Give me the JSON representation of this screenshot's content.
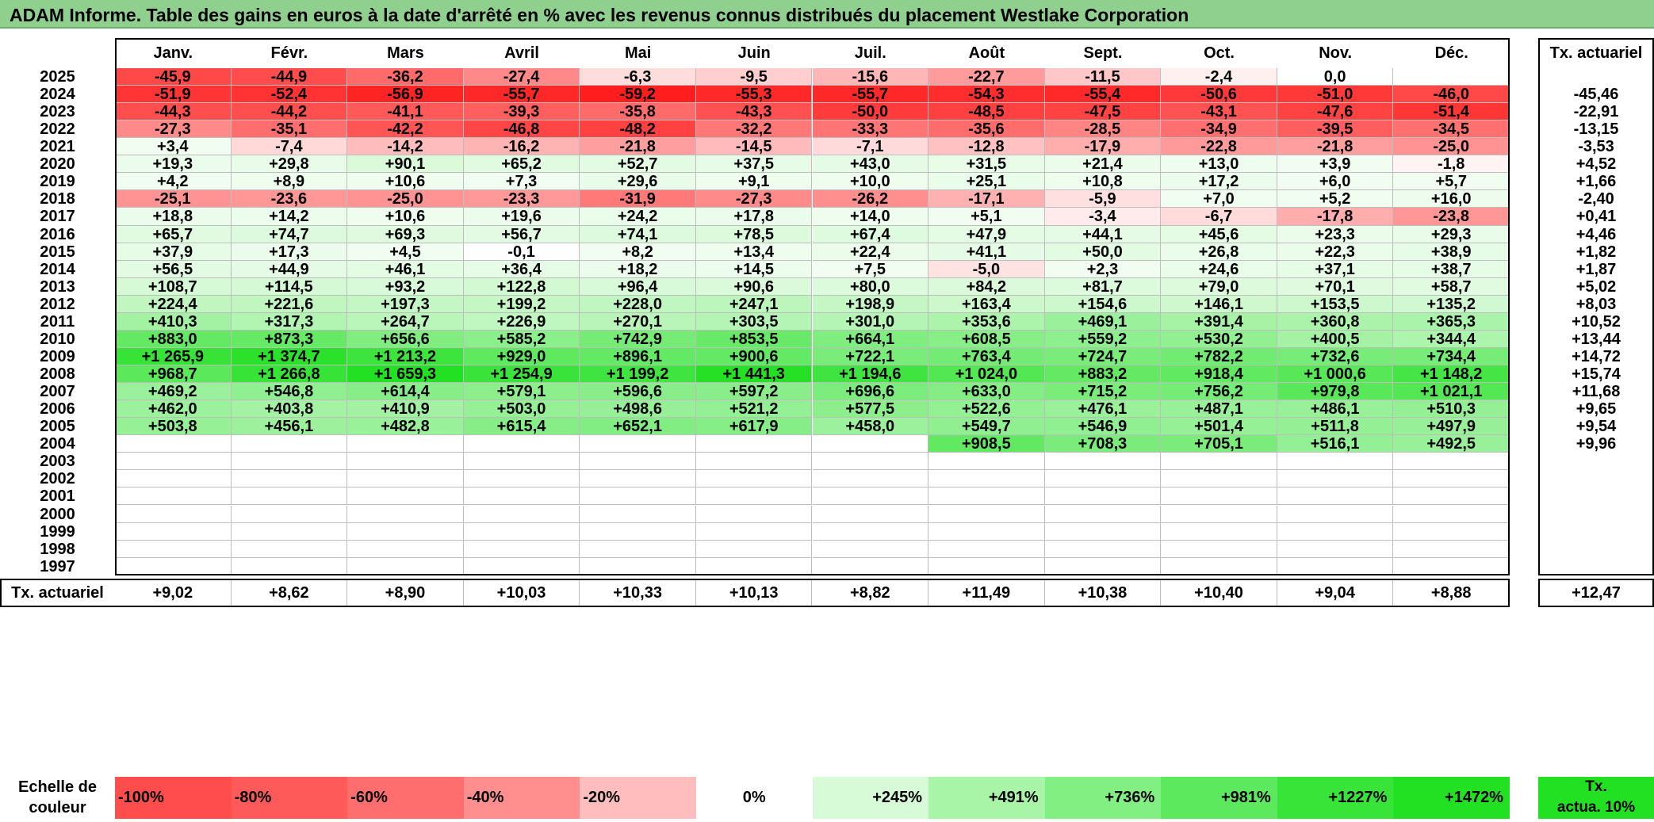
{
  "title": "ADAM Informe. Table des gains en euros à la date d'arrêté en % avec les revenus connus distribués du placement Westlake Corporation",
  "chart_data": {
    "type": "heatmap",
    "columns": [
      "Janv.",
      "Févr.",
      "Mars",
      "Avril",
      "Mai",
      "Juin",
      "Juil.",
      "Août",
      "Sept.",
      "Oct.",
      "Nov.",
      "Déc."
    ],
    "rate_header": "Tx. actuariel",
    "rows": [
      {
        "year": "2025",
        "values": [
          -45.9,
          -44.9,
          -36.2,
          -27.4,
          -6.3,
          -9.5,
          -15.6,
          -22.7,
          -11.5,
          -2.4,
          0.0,
          null
        ],
        "rate": ""
      },
      {
        "year": "2024",
        "values": [
          -51.9,
          -52.4,
          -56.9,
          -55.7,
          -59.2,
          -55.3,
          -55.7,
          -54.3,
          -55.4,
          -50.6,
          -51.0,
          -46.0
        ],
        "rate": "-45,46"
      },
      {
        "year": "2023",
        "values": [
          -44.3,
          -44.2,
          -41.1,
          -39.3,
          -35.8,
          -43.3,
          -50.0,
          -48.5,
          -47.5,
          -43.1,
          -47.6,
          -51.4
        ],
        "rate": "-22,91"
      },
      {
        "year": "2022",
        "values": [
          -27.3,
          -35.1,
          -42.2,
          -46.8,
          -48.2,
          -32.2,
          -33.3,
          -35.6,
          -28.5,
          -34.9,
          -39.5,
          -34.5
        ],
        "rate": "-13,15"
      },
      {
        "year": "2021",
        "values": [
          3.4,
          -7.4,
          -14.2,
          -16.2,
          -21.8,
          -14.5,
          -7.1,
          -12.8,
          -17.9,
          -22.8,
          -21.8,
          -25.0
        ],
        "rate": "-3,53"
      },
      {
        "year": "2020",
        "values": [
          19.3,
          29.8,
          90.1,
          65.2,
          52.7,
          37.5,
          43.0,
          31.5,
          21.4,
          13.0,
          3.9,
          -1.8
        ],
        "rate": "+4,52"
      },
      {
        "year": "2019",
        "values": [
          4.2,
          8.9,
          10.6,
          7.3,
          29.6,
          9.1,
          10.0,
          25.1,
          10.8,
          17.2,
          6.0,
          5.7
        ],
        "rate": "+1,66"
      },
      {
        "year": "2018",
        "values": [
          -25.1,
          -23.6,
          -25.0,
          -23.3,
          -31.9,
          -27.3,
          -26.2,
          -17.1,
          -5.9,
          7.0,
          5.2,
          16.0
        ],
        "rate": "-2,40"
      },
      {
        "year": "2017",
        "values": [
          18.8,
          14.2,
          10.6,
          19.6,
          24.2,
          17.8,
          14.0,
          5.1,
          -3.4,
          -6.7,
          -17.8,
          -23.8
        ],
        "rate": "+0,41"
      },
      {
        "year": "2016",
        "values": [
          65.7,
          74.7,
          69.3,
          56.7,
          74.1,
          78.5,
          67.4,
          47.9,
          44.1,
          45.6,
          23.3,
          29.3
        ],
        "rate": "+4,46"
      },
      {
        "year": "2015",
        "values": [
          37.9,
          17.3,
          4.5,
          -0.1,
          8.2,
          13.4,
          22.4,
          41.1,
          50.0,
          26.8,
          22.3,
          38.9
        ],
        "rate": "+1,82"
      },
      {
        "year": "2014",
        "values": [
          56.5,
          44.9,
          46.1,
          36.4,
          18.2,
          14.5,
          7.5,
          -5.0,
          2.3,
          24.6,
          37.1,
          38.7
        ],
        "rate": "+1,87"
      },
      {
        "year": "2013",
        "values": [
          108.7,
          114.5,
          93.2,
          122.8,
          96.4,
          90.6,
          80.0,
          84.2,
          81.7,
          79.0,
          70.1,
          58.7
        ],
        "rate": "+5,02"
      },
      {
        "year": "2012",
        "values": [
          224.4,
          221.6,
          197.3,
          199.2,
          228.0,
          247.1,
          198.9,
          163.4,
          154.6,
          146.1,
          153.5,
          135.2
        ],
        "rate": "+8,03"
      },
      {
        "year": "2011",
        "values": [
          410.3,
          317.3,
          264.7,
          226.9,
          270.1,
          303.5,
          301.0,
          353.6,
          469.1,
          391.4,
          360.8,
          365.3
        ],
        "rate": "+10,52"
      },
      {
        "year": "2010",
        "values": [
          883.0,
          873.3,
          656.6,
          585.2,
          742.9,
          853.5,
          664.1,
          608.5,
          559.2,
          530.2,
          400.5,
          344.4
        ],
        "rate": "+13,44"
      },
      {
        "year": "2009",
        "values": [
          1265.9,
          1374.7,
          1213.2,
          929.0,
          896.1,
          900.6,
          722.1,
          763.4,
          724.7,
          782.2,
          732.6,
          734.4
        ],
        "rate": "+14,72"
      },
      {
        "year": "2008",
        "values": [
          968.7,
          1266.8,
          1659.3,
          1254.9,
          1199.2,
          1441.3,
          1194.6,
          1024.0,
          883.2,
          918.4,
          1000.6,
          1148.2
        ],
        "rate": "+15,74"
      },
      {
        "year": "2007",
        "values": [
          469.2,
          546.8,
          614.4,
          579.1,
          596.6,
          597.2,
          696.6,
          633.0,
          715.2,
          756.2,
          979.8,
          1021.1
        ],
        "rate": "+11,68"
      },
      {
        "year": "2006",
        "values": [
          462.0,
          403.8,
          410.9,
          503.0,
          498.6,
          521.2,
          577.5,
          522.6,
          476.1,
          487.1,
          486.1,
          510.3
        ],
        "rate": "+9,65"
      },
      {
        "year": "2005",
        "values": [
          503.8,
          456.1,
          482.8,
          615.4,
          652.1,
          617.9,
          458.0,
          549.7,
          546.9,
          501.4,
          511.8,
          497.9
        ],
        "rate": "+9,54"
      },
      {
        "year": "2004",
        "values": [
          null,
          null,
          null,
          null,
          null,
          null,
          null,
          908.5,
          708.3,
          705.1,
          516.1,
          492.5
        ],
        "rate": "+9,96"
      },
      {
        "year": "2003",
        "values": [
          null,
          null,
          null,
          null,
          null,
          null,
          null,
          null,
          null,
          null,
          null,
          null
        ],
        "rate": ""
      },
      {
        "year": "2002",
        "values": [
          null,
          null,
          null,
          null,
          null,
          null,
          null,
          null,
          null,
          null,
          null,
          null
        ],
        "rate": ""
      },
      {
        "year": "2001",
        "values": [
          null,
          null,
          null,
          null,
          null,
          null,
          null,
          null,
          null,
          null,
          null,
          null
        ],
        "rate": ""
      },
      {
        "year": "2000",
        "values": [
          null,
          null,
          null,
          null,
          null,
          null,
          null,
          null,
          null,
          null,
          null,
          null
        ],
        "rate": ""
      },
      {
        "year": "1999",
        "values": [
          null,
          null,
          null,
          null,
          null,
          null,
          null,
          null,
          null,
          null,
          null,
          null
        ],
        "rate": ""
      },
      {
        "year": "1998",
        "values": [
          null,
          null,
          null,
          null,
          null,
          null,
          null,
          null,
          null,
          null,
          null,
          null
        ],
        "rate": ""
      },
      {
        "year": "1997",
        "values": [
          null,
          null,
          null,
          null,
          null,
          null,
          null,
          null,
          null,
          null,
          null,
          null
        ],
        "rate": ""
      }
    ],
    "footer": {
      "label": "Tx. actuariel",
      "values": [
        "+9,02",
        "+8,62",
        "+8,90",
        "+10,03",
        "+10,33",
        "+10,13",
        "+8,82",
        "+11,49",
        "+10,38",
        "+10,40",
        "+9,04",
        "+8,88"
      ],
      "total": "+12,47"
    },
    "scale": {
      "label_line1": "Echelle de",
      "label_line2": "couleur",
      "items": [
        {
          "text": "-100%",
          "color": "#ff4d4d"
        },
        {
          "text": "-80%",
          "color": "#ff5a5a"
        },
        {
          "text": "-60%",
          "color": "#ff6e6e"
        },
        {
          "text": "-40%",
          "color": "#ff8e8e"
        },
        {
          "text": "-20%",
          "color": "#ffbdbd"
        },
        {
          "text": "0%",
          "color": "#ffffff"
        },
        {
          "text": "+245%",
          "color": "#d6fbd6"
        },
        {
          "text": "+491%",
          "color": "#a8f5a8"
        },
        {
          "text": "+736%",
          "color": "#82ef82"
        },
        {
          "text": "+981%",
          "color": "#5de95d"
        },
        {
          "text": "+1227%",
          "color": "#38e438"
        },
        {
          "text": "+1472%",
          "color": "#22e022"
        }
      ],
      "rate_line1": "Tx.",
      "rate_line2": "actua. 10%"
    },
    "colors": {
      "negative_max": "#ff1a1a",
      "zero": "#ffffff",
      "positive_max": "#22e022"
    }
  }
}
